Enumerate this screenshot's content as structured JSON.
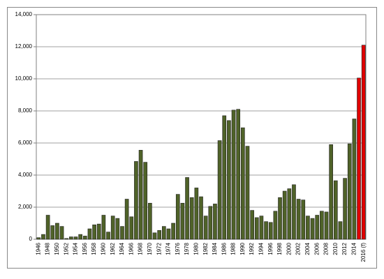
{
  "chart_data": {
    "type": "bar",
    "categories": [
      "1946",
      null,
      "1948",
      null,
      "1950",
      null,
      "1952",
      null,
      "1954",
      null,
      "1956",
      null,
      "1958",
      null,
      "1960",
      null,
      "1962",
      null,
      "1964",
      null,
      "1966",
      null,
      "1968",
      null,
      "1970",
      null,
      "1972",
      null,
      "1974",
      null,
      "1976",
      null,
      "1978",
      null,
      "1980",
      null,
      "1982",
      null,
      "1984",
      null,
      "1986",
      null,
      "1988",
      null,
      "1990",
      null,
      "1992",
      null,
      "1994",
      null,
      "1996",
      null,
      "1998",
      null,
      "2000",
      null,
      "2002",
      null,
      "2004",
      null,
      "2006",
      null,
      "2008",
      null,
      "2010",
      null,
      "2012",
      null,
      "2014",
      null,
      "2016 (f)"
    ],
    "values": [
      100,
      300,
      1500,
      850,
      1000,
      800,
      50,
      150,
      150,
      300,
      200,
      650,
      900,
      950,
      1500,
      450,
      1450,
      1300,
      800,
      2500,
      1400,
      4850,
      5550,
      4800,
      2250,
      400,
      550,
      800,
      650,
      1000,
      2800,
      2250,
      3850,
      2600,
      3200,
      2650,
      1450,
      2050,
      2200,
      6150,
      7700,
      7400,
      8050,
      8100,
      6950,
      5800,
      1800,
      1350,
      1450,
      1100,
      1050,
      1750,
      2600,
      3000,
      3150,
      3400,
      2500,
      2450,
      1450,
      1300,
      1500,
      1750,
      1700,
      5900,
      3650,
      1100,
      3800,
      5950,
      7500,
      10050,
      12100
    ],
    "colors": [
      "#4f6228",
      "#4f6228",
      "#4f6228",
      "#4f6228",
      "#4f6228",
      "#4f6228",
      "#4f6228",
      "#4f6228",
      "#4f6228",
      "#4f6228",
      "#4f6228",
      "#4f6228",
      "#4f6228",
      "#4f6228",
      "#4f6228",
      "#4f6228",
      "#4f6228",
      "#4f6228",
      "#4f6228",
      "#4f6228",
      "#4f6228",
      "#4f6228",
      "#4f6228",
      "#4f6228",
      "#4f6228",
      "#4f6228",
      "#4f6228",
      "#4f6228",
      "#4f6228",
      "#4f6228",
      "#4f6228",
      "#4f6228",
      "#4f6228",
      "#4f6228",
      "#4f6228",
      "#4f6228",
      "#4f6228",
      "#4f6228",
      "#4f6228",
      "#4f6228",
      "#4f6228",
      "#4f6228",
      "#4f6228",
      "#4f6228",
      "#4f6228",
      "#4f6228",
      "#4f6228",
      "#4f6228",
      "#4f6228",
      "#4f6228",
      "#4f6228",
      "#4f6228",
      "#4f6228",
      "#4f6228",
      "#4f6228",
      "#4f6228",
      "#4f6228",
      "#4f6228",
      "#4f6228",
      "#4f6228",
      "#4f6228",
      "#4f6228",
      "#4f6228",
      "#4f6228",
      "#4f6228",
      "#4f6228",
      "#4f6228",
      "#4f6228",
      "#4f6228",
      "#e00000",
      "#e00000"
    ],
    "ylim": [
      0,
      14000
    ],
    "yticks": [
      0,
      {
        "value": 2000,
        "label": "2,000"
      },
      {
        "value": 4000,
        "label": "4,000"
      },
      {
        "value": 6000,
        "label": "6,000"
      },
      {
        "value": 8000,
        "label": "8,000"
      },
      {
        "value": 10000,
        "label": "10,000"
      },
      {
        "value": 12000,
        "label": "12,000"
      },
      {
        "value": 14000,
        "label": "14,000"
      }
    ],
    "grid": true
  }
}
